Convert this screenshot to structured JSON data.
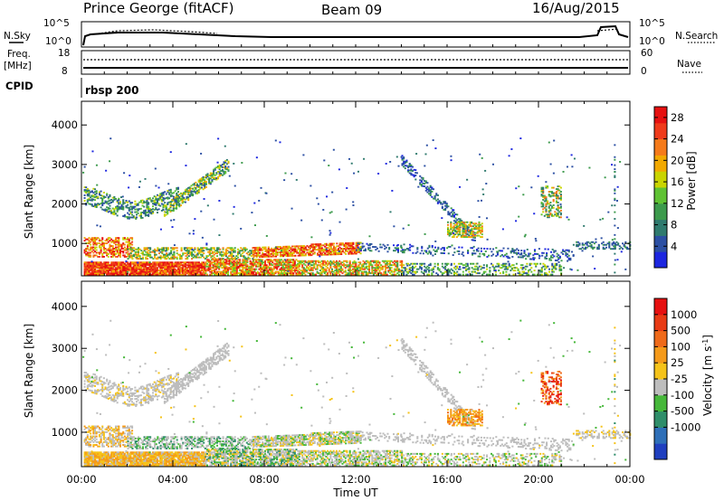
{
  "header": {
    "station": "Prince George (fitACF)",
    "beam": "Beam 09",
    "date": "16/Aug/2015"
  },
  "panels": {
    "nsky": {
      "label": "N.Sky",
      "ticks": [
        "10^5",
        "10^0"
      ]
    },
    "nsearch": {
      "label": "N.Search",
      "ticks": [
        "10^5",
        "10^0"
      ]
    },
    "freq": {
      "label_line1": "Freq.",
      "label_line2": "[MHz]",
      "ticks": [
        "18",
        "8"
      ]
    },
    "nave": {
      "label": "Nave",
      "ticks": [
        "60",
        "0"
      ]
    },
    "cpid": {
      "label": "CPID",
      "value": "rbsp 200"
    }
  },
  "chart_data": [
    {
      "type": "heatmap",
      "quantity": "Power",
      "ylabel": "Slant Range [km]",
      "xlabel": "Time UT",
      "xticks": [
        "00:00",
        "04:00",
        "08:00",
        "12:00",
        "16:00",
        "20:00",
        "00:00"
      ],
      "xlim_hours": [
        0,
        24
      ],
      "ylim_km": [
        180,
        4600
      ],
      "yticks": [
        "1000",
        "2000",
        "3000",
        "4000"
      ],
      "colorbar": {
        "label": "Power [dB]",
        "ticks": [
          "4",
          "8",
          "12",
          "16",
          "20",
          "24",
          "28"
        ],
        "range": [
          0,
          30
        ],
        "colors": [
          "#1c26e0",
          "#2b4fa3",
          "#2f7a6e",
          "#3c9a4c",
          "#5fc233",
          "#c9d400",
          "#f2a900",
          "#f57a1a",
          "#ef3a1a",
          "#e61010"
        ]
      }
    },
    {
      "type": "heatmap",
      "quantity": "Velocity",
      "ylabel": "Slant Range [km]",
      "xlabel": "Time UT",
      "xticks": [
        "00:00",
        "04:00",
        "08:00",
        "12:00",
        "16:00",
        "20:00",
        "00:00"
      ],
      "xlim_hours": [
        0,
        24
      ],
      "ylim_km": [
        180,
        4600
      ],
      "yticks": [
        "1000",
        "2000",
        "3000",
        "4000"
      ],
      "colorbar": {
        "label": "Velocity [m s",
        "label_sup": "-1",
        "label_close": "]",
        "ticks": [
          "1000",
          "500",
          "100",
          "25",
          "-25",
          "-100",
          "-500",
          "-1000"
        ],
        "colors": [
          "#1f3fbf",
          "#2e6fb8",
          "#2f8e6a",
          "#46b83a",
          "#bdbdbd",
          "#f5c31a",
          "#f59a1a",
          "#ef6a1a",
          "#e83a14",
          "#e61010"
        ]
      },
      "ground_scatter_color": "#bdbdbd"
    }
  ]
}
